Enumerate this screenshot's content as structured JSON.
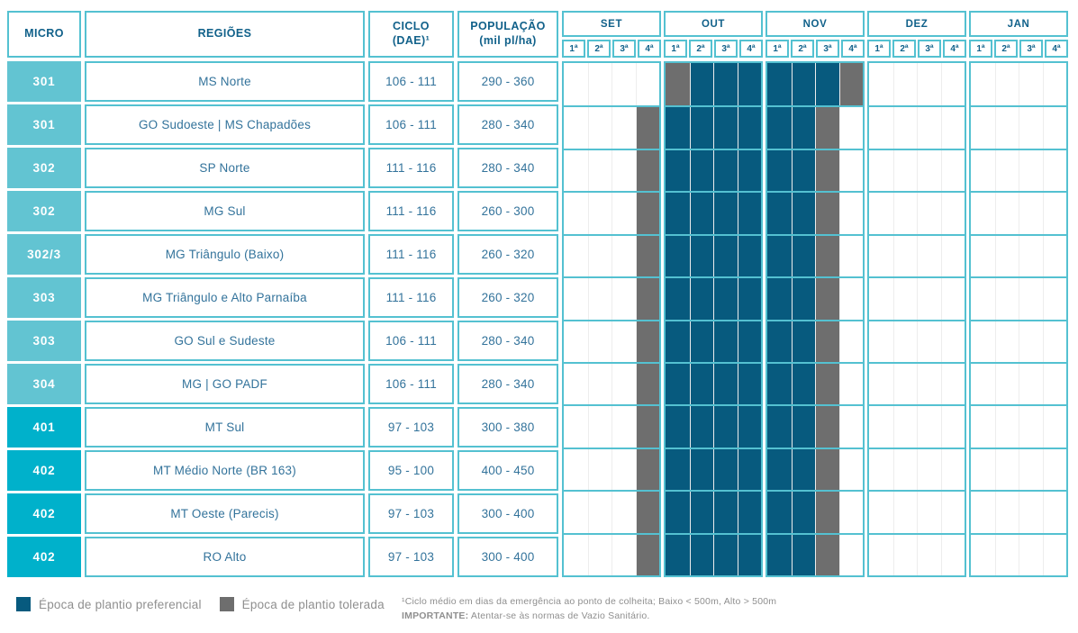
{
  "table": {
    "header": {
      "micro": "MICRO",
      "regioes": "REGIÕES",
      "ciclo_line1": "CICLO",
      "ciclo_line2": "(DAE)¹",
      "populacao_line1": "POPULAÇÃO",
      "populacao_line2": "(mil pl/ha)",
      "months": [
        "SET",
        "OUT",
        "NOV",
        "DEZ",
        "JAN"
      ],
      "weeks": [
        "1ª",
        "2ª",
        "3ª",
        "4ª"
      ]
    },
    "rows": [
      {
        "micro": "301",
        "tone": "light",
        "region": "MS Norte",
        "ciclo": "106 - 111",
        "populacao": "290 - 360",
        "weeks": "....TPPPPPPT........"
      },
      {
        "micro": "301",
        "tone": "light",
        "region": "GO Sudoeste | MS Chapadões",
        "ciclo": "106 - 111",
        "populacao": "280 - 340",
        "weeks": "...TPPPPPPT........."
      },
      {
        "micro": "302",
        "tone": "light",
        "region": "SP Norte",
        "ciclo": "111 - 116",
        "populacao": "280 - 340",
        "weeks": "...TPPPPPPT........."
      },
      {
        "micro": "302",
        "tone": "light",
        "region": "MG Sul",
        "ciclo": "111 - 116",
        "populacao": "260 - 300",
        "weeks": "...TPPPPPPT........."
      },
      {
        "micro": "302/3",
        "tone": "light",
        "region": "MG Triângulo (Baixo)",
        "ciclo": "111 - 116",
        "populacao": "260 - 320",
        "weeks": "...TPPPPPPT........."
      },
      {
        "micro": "303",
        "tone": "light",
        "region": "MG Triângulo e Alto Parnaíba",
        "ciclo": "111 - 116",
        "populacao": "260 - 320",
        "weeks": "...TPPPPPPT........."
      },
      {
        "micro": "303",
        "tone": "light",
        "region": "GO Sul e Sudeste",
        "ciclo": "106 - 111",
        "populacao": "280 - 340",
        "weeks": "...TPPPPPPT........."
      },
      {
        "micro": "304",
        "tone": "light",
        "region": "MG | GO PADF",
        "ciclo": "106 - 111",
        "populacao": "280 - 340",
        "weeks": "...TPPPPPPT........."
      },
      {
        "micro": "401",
        "tone": "bright",
        "region": "MT Sul",
        "ciclo": "97 - 103",
        "populacao": "300 - 380",
        "weeks": "...TPPPPPPT........."
      },
      {
        "micro": "402",
        "tone": "bright",
        "region": "MT Médio Norte (BR 163)",
        "ciclo": "95 - 100",
        "populacao": "400 - 450",
        "weeks": "...TPPPPPPT........."
      },
      {
        "micro": "402",
        "tone": "bright",
        "region": "MT Oeste (Parecis)",
        "ciclo": "97 - 103",
        "populacao": "300 - 400",
        "weeks": "...TPPPPPPT........."
      },
      {
        "micro": "402",
        "tone": "bright",
        "region": "RO Alto",
        "ciclo": "97 - 103",
        "populacao": "300 - 400",
        "weeks": "...TPPPPPPT........."
      }
    ]
  },
  "legend": {
    "preferred": "Época de plantio preferencial",
    "tolerated": "Época de plantio tolerada"
  },
  "footnotes": {
    "ciclo": "¹Ciclo médio em dias da emergência ao ponto de colheita; Baixo < 500m, Alto > 500m",
    "important_label": "IMPORTANTE:",
    "important_text": " Atentar-se às normas de Vazio Sanitário."
  },
  "colors": {
    "preferred": "#075a7e",
    "tolerated": "#6e6e6e",
    "micro_group_300": "#62c4d2",
    "micro_group_400": "#00b1cb",
    "border_teal": "#54c1d1",
    "header_text": "#11618a",
    "body_text": "#33739b",
    "muted_text": "#8f8f8f",
    "week_divider": "#ededed"
  },
  "chart_data": {
    "type": "table",
    "description": "Planting-window calendar by micro-region; 20 weekly slots (SET–JAN, weeks 1ª–4ª). P = preferred planting window, T = tolerated planting window, . = none",
    "columns": [
      "MICRO",
      "REGIÕES",
      "CICLO (DAE)¹",
      "POPULAÇÃO (mil pl/ha)",
      "SET",
      "OUT",
      "NOV",
      "DEZ",
      "JAN"
    ],
    "week_slots": [
      "SET 1ª",
      "SET 2ª",
      "SET 3ª",
      "SET 4ª",
      "OUT 1ª",
      "OUT 2ª",
      "OUT 3ª",
      "OUT 4ª",
      "NOV 1ª",
      "NOV 2ª",
      "NOV 3ª",
      "NOV 4ª",
      "DEZ 1ª",
      "DEZ 2ª",
      "DEZ 3ª",
      "DEZ 4ª",
      "JAN 1ª",
      "JAN 2ª",
      "JAN 3ª",
      "JAN 4ª"
    ],
    "state_legend": {
      "P": "Época de plantio preferencial",
      "T": "Época de plantio tolerada",
      ".": "empty"
    },
    "rows": [
      {
        "micro": "301",
        "regiao": "MS Norte",
        "ciclo_dae": "106 - 111",
        "populacao_mil_pl_ha": "290 - 360",
        "calendario": "....TPPPPPPT........"
      },
      {
        "micro": "301",
        "regiao": "GO Sudoeste | MS Chapadões",
        "ciclo_dae": "106 - 111",
        "populacao_mil_pl_ha": "280 - 340",
        "calendario": "...TPPPPPPT........."
      },
      {
        "micro": "302",
        "regiao": "SP Norte",
        "ciclo_dae": "111 - 116",
        "populacao_mil_pl_ha": "280 - 340",
        "calendario": "...TPPPPPPT........."
      },
      {
        "micro": "302",
        "regiao": "MG Sul",
        "ciclo_dae": "111 - 116",
        "populacao_mil_pl_ha": "260 - 300",
        "calendario": "...TPPPPPPT........."
      },
      {
        "micro": "302/3",
        "regiao": "MG Triângulo (Baixo)",
        "ciclo_dae": "111 - 116",
        "populacao_mil_pl_ha": "260 - 320",
        "calendario": "...TPPPPPPT........."
      },
      {
        "micro": "303",
        "regiao": "MG Triângulo e Alto Parnaíba",
        "ciclo_dae": "111 - 116",
        "populacao_mil_pl_ha": "260 - 320",
        "calendario": "...TPPPPPPT........."
      },
      {
        "micro": "303",
        "regiao": "GO Sul e Sudeste",
        "ciclo_dae": "106 - 111",
        "populacao_mil_pl_ha": "280 - 340",
        "calendario": "...TPPPPPPT........."
      },
      {
        "micro": "304",
        "regiao": "MG | GO PADF",
        "ciclo_dae": "106 - 111",
        "populacao_mil_pl_ha": "280 - 340",
        "calendario": "...TPPPPPPT........."
      },
      {
        "micro": "401",
        "regiao": "MT Sul",
        "ciclo_dae": "97 - 103",
        "populacao_mil_pl_ha": "300 - 380",
        "calendario": "...TPPPPPPT........."
      },
      {
        "micro": "402",
        "regiao": "MT Médio Norte (BR 163)",
        "ciclo_dae": "95 - 100",
        "populacao_mil_pl_ha": "400 - 450",
        "calendario": "...TPPPPPPT........."
      },
      {
        "micro": "402",
        "regiao": "MT Oeste (Parecis)",
        "ciclo_dae": "97 - 103",
        "populacao_mil_pl_ha": "300 - 400",
        "calendario": "...TPPPPPPT........."
      },
      {
        "micro": "402",
        "regiao": "RO Alto",
        "ciclo_dae": "97 - 103",
        "populacao_mil_pl_ha": "300 - 400",
        "calendario": "...TPPPPPPT........."
      }
    ]
  }
}
